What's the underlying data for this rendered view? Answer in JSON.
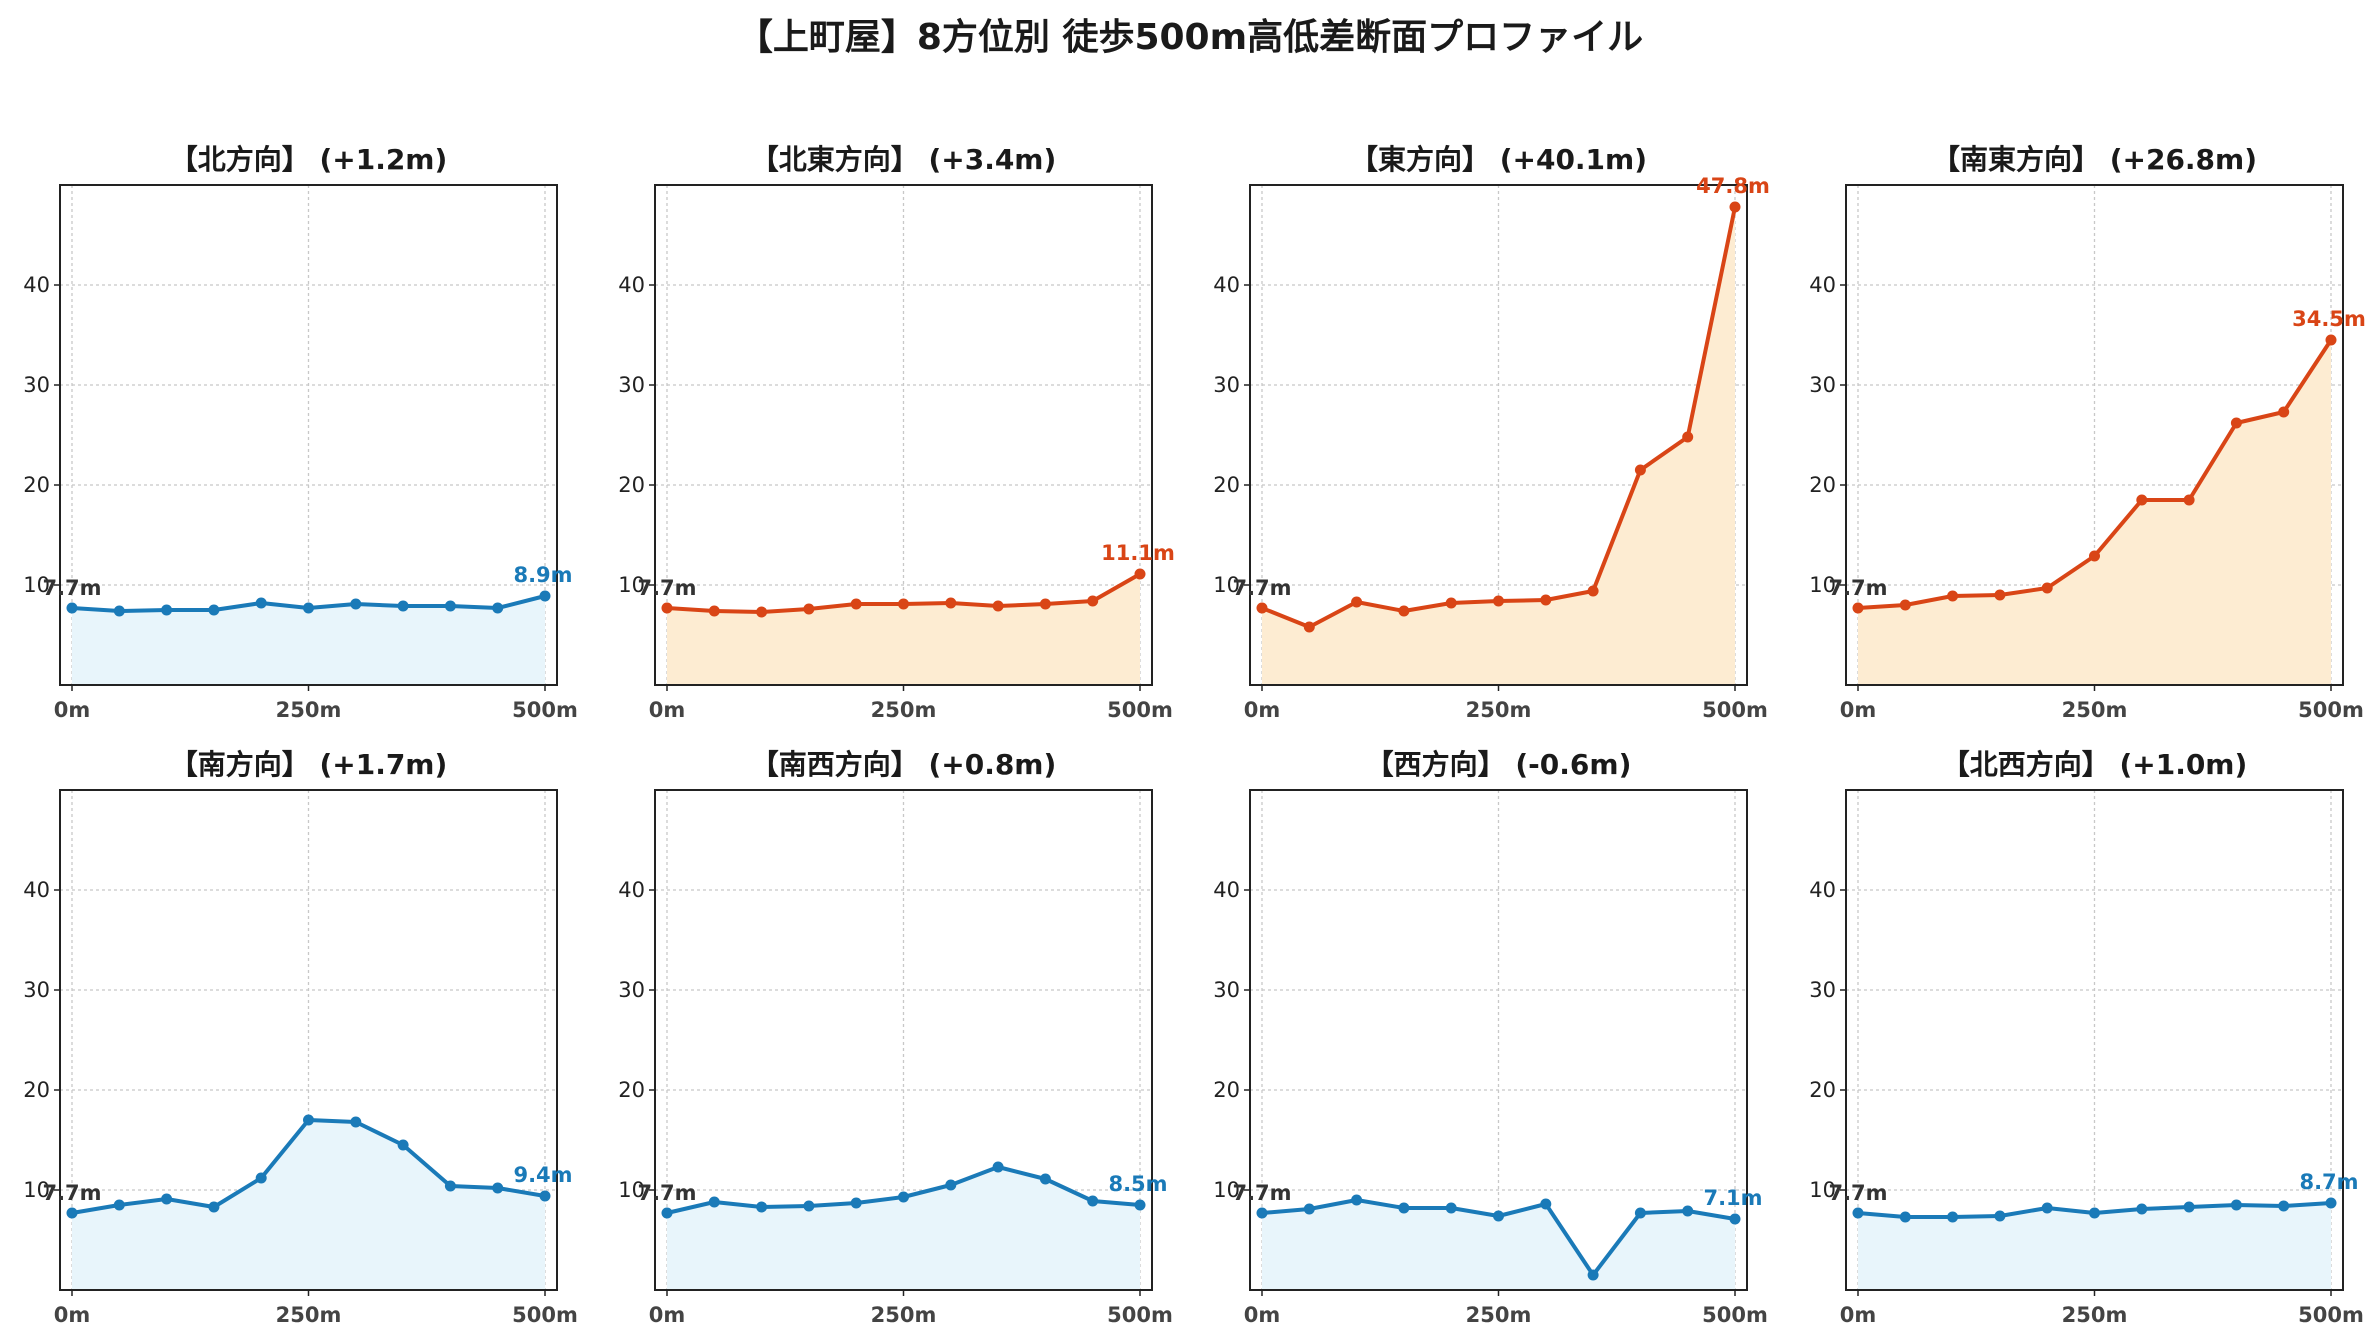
{
  "title": "【上町屋】8方位別 徒歩500m高低差断面プロファイル",
  "colors": {
    "down": "#1a7ab8",
    "down_fill": "#e8f5fb",
    "up": "#d94516",
    "up_fill": "#fdecd2"
  },
  "chart_data": [
    {
      "type": "area",
      "title": "【北方向】 (+1.2m)",
      "trend": "down",
      "x": [
        0,
        50,
        100,
        150,
        200,
        250,
        300,
        350,
        400,
        450,
        500
      ],
      "values": [
        7.7,
        7.4,
        7.5,
        7.5,
        8.2,
        7.7,
        8.1,
        7.9,
        7.9,
        7.7,
        8.9
      ],
      "start_label": "7.7m",
      "end_label": "8.9m",
      "ylim": [
        0,
        50
      ],
      "yticks": [
        10,
        20,
        30,
        40
      ],
      "xticks": [
        "0m",
        "250m",
        "500m"
      ],
      "grid": true
    },
    {
      "type": "area",
      "title": "【北東方向】 (+3.4m)",
      "trend": "up",
      "x": [
        0,
        50,
        100,
        150,
        200,
        250,
        300,
        350,
        400,
        450,
        500
      ],
      "values": [
        7.7,
        7.4,
        7.3,
        7.6,
        8.1,
        8.1,
        8.2,
        7.9,
        8.1,
        8.4,
        11.1
      ],
      "start_label": "7.7m",
      "end_label": "11.1m",
      "ylim": [
        0,
        50
      ],
      "yticks": [
        10,
        20,
        30,
        40
      ],
      "xticks": [
        "0m",
        "250m",
        "500m"
      ],
      "grid": true
    },
    {
      "type": "area",
      "title": "【東方向】 (+40.1m)",
      "trend": "up",
      "x": [
        0,
        50,
        100,
        150,
        200,
        250,
        300,
        350,
        400,
        450,
        500
      ],
      "values": [
        7.7,
        5.8,
        8.3,
        7.4,
        8.2,
        8.4,
        8.5,
        9.4,
        21.5,
        24.8,
        47.8
      ],
      "start_label": "7.7m",
      "end_label": "47.8m",
      "ylim": [
        0,
        50
      ],
      "yticks": [
        10,
        20,
        30,
        40
      ],
      "xticks": [
        "0m",
        "250m",
        "500m"
      ],
      "grid": true
    },
    {
      "type": "area",
      "title": "【南東方向】 (+26.8m)",
      "trend": "up",
      "x": [
        0,
        50,
        100,
        150,
        200,
        250,
        300,
        350,
        400,
        450,
        500
      ],
      "values": [
        7.7,
        8.0,
        8.9,
        9.0,
        9.7,
        12.9,
        18.5,
        18.5,
        26.2,
        27.3,
        34.5
      ],
      "start_label": "7.7m",
      "end_label": "34.5m",
      "ylim": [
        0,
        50
      ],
      "yticks": [
        10,
        20,
        30,
        40
      ],
      "xticks": [
        "0m",
        "250m",
        "500m"
      ],
      "grid": true
    },
    {
      "type": "area",
      "title": "【南方向】 (+1.7m)",
      "trend": "down",
      "x": [
        0,
        50,
        100,
        150,
        200,
        250,
        300,
        350,
        400,
        450,
        500
      ],
      "values": [
        7.7,
        8.5,
        9.1,
        8.3,
        11.2,
        17.0,
        16.8,
        14.5,
        10.4,
        10.2,
        9.4
      ],
      "start_label": "7.7m",
      "end_label": "9.4m",
      "ylim": [
        0,
        50
      ],
      "yticks": [
        10,
        20,
        30,
        40
      ],
      "xticks": [
        "0m",
        "250m",
        "500m"
      ],
      "grid": true
    },
    {
      "type": "area",
      "title": "【南西方向】 (+0.8m)",
      "trend": "down",
      "x": [
        0,
        50,
        100,
        150,
        200,
        250,
        300,
        350,
        400,
        450,
        500
      ],
      "values": [
        7.7,
        8.8,
        8.3,
        8.4,
        8.7,
        9.3,
        10.5,
        12.3,
        11.1,
        8.9,
        8.5
      ],
      "start_label": "7.7m",
      "end_label": "8.5m",
      "ylim": [
        0,
        50
      ],
      "yticks": [
        10,
        20,
        30,
        40
      ],
      "xticks": [
        "0m",
        "250m",
        "500m"
      ],
      "grid": true
    },
    {
      "type": "area",
      "title": "【西方向】 (-0.6m)",
      "trend": "down",
      "x": [
        0,
        50,
        100,
        150,
        200,
        250,
        300,
        350,
        400,
        450,
        500
      ],
      "values": [
        7.7,
        8.1,
        9.0,
        8.2,
        8.2,
        7.4,
        8.6,
        1.5,
        7.7,
        7.9,
        7.1
      ],
      "start_label": "7.7m",
      "end_label": "7.1m",
      "ylim": [
        0,
        50
      ],
      "yticks": [
        10,
        20,
        30,
        40
      ],
      "xticks": [
        "0m",
        "250m",
        "500m"
      ],
      "grid": true
    },
    {
      "type": "area",
      "title": "【北西方向】 (+1.0m)",
      "trend": "down",
      "x": [
        0,
        50,
        100,
        150,
        200,
        250,
        300,
        350,
        400,
        450,
        500
      ],
      "values": [
        7.7,
        7.3,
        7.3,
        7.4,
        8.2,
        7.7,
        8.1,
        8.3,
        8.5,
        8.4,
        8.7
      ],
      "start_label": "7.7m",
      "end_label": "8.7m",
      "ylim": [
        0,
        50
      ],
      "yticks": [
        10,
        20,
        30,
        40
      ],
      "xticks": [
        "0m",
        "250m",
        "500m"
      ],
      "grid": true
    }
  ]
}
